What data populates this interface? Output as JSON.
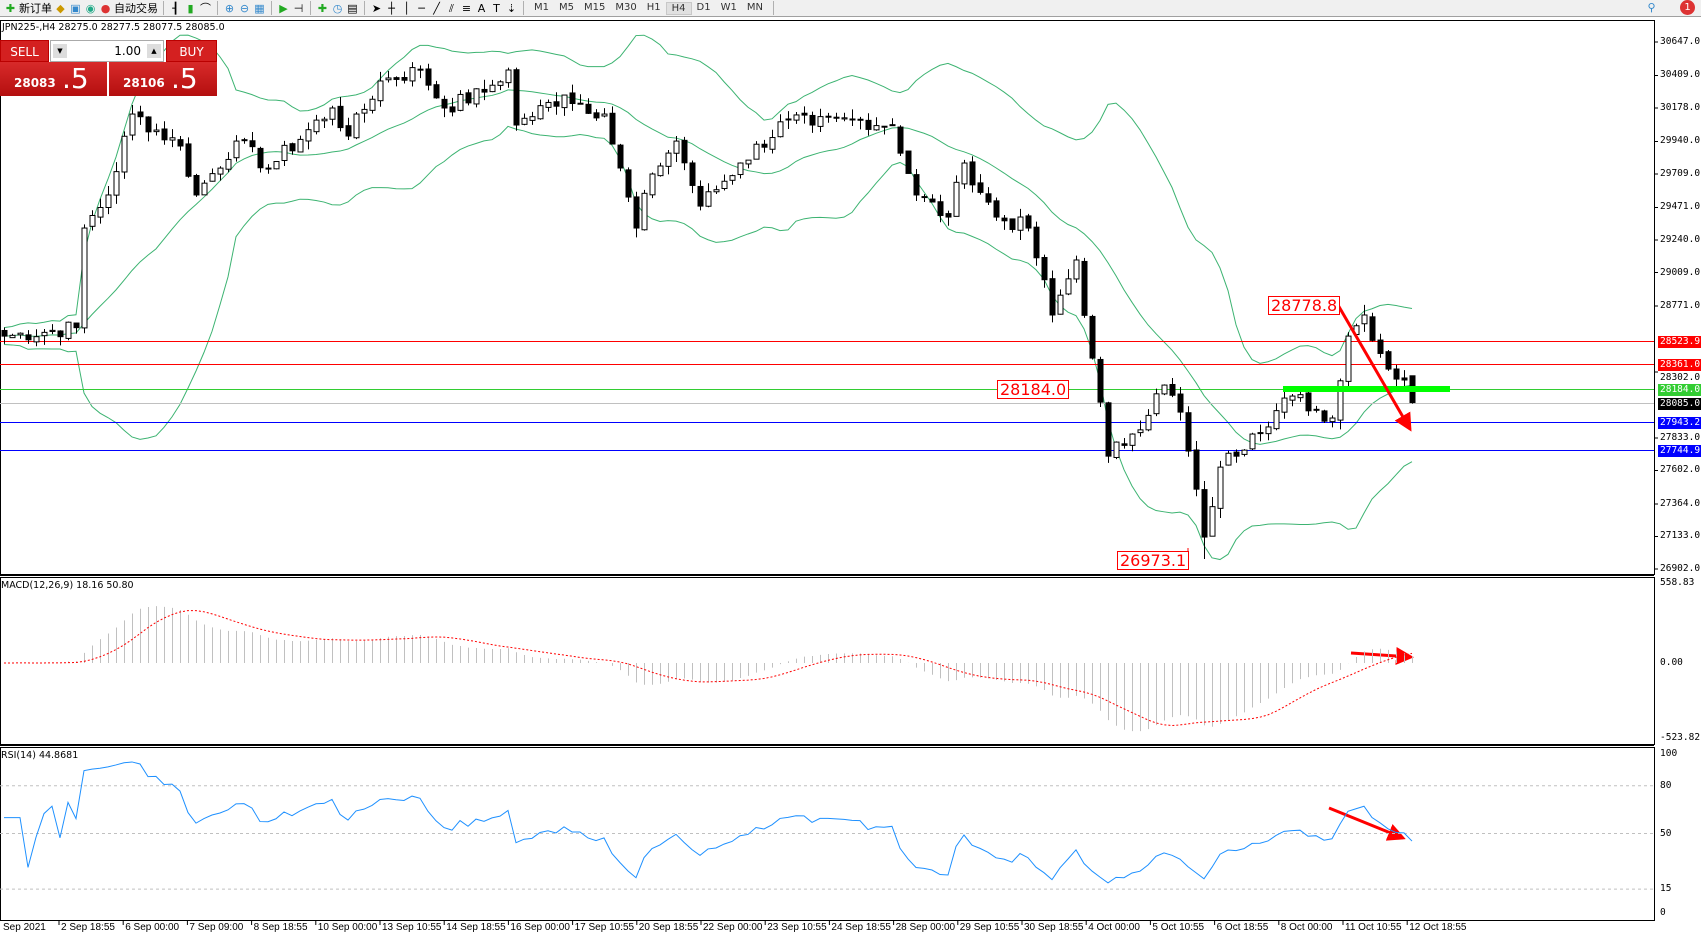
{
  "toolbar": {
    "new_order": "新订单",
    "auto_trading": "自动交易",
    "timeframes": [
      "M1",
      "M5",
      "M15",
      "M30",
      "H1",
      "H4",
      "D1",
      "W1",
      "MN"
    ],
    "active_timeframe": "H4",
    "notification_count": "1"
  },
  "symbol_header": "JPN225-,H4  28275.0 28277.5 28077.5 28085.0",
  "trade_panel": {
    "sell_label": "SELL",
    "buy_label": "BUY",
    "lot": "1.00",
    "sell_price_main": "28083",
    "sell_price_frac": ".5",
    "buy_price_main": "28106",
    "buy_price_frac": ".5"
  },
  "price_axis": [
    "30647.0",
    "30409.0",
    "30178.0",
    "29940.0",
    "29709.0",
    "29471.0",
    "29240.0",
    "29009.0",
    "28771.0",
    "28302.0",
    "27833.0",
    "27602.0",
    "27364.0",
    "27133.0",
    "26902.0"
  ],
  "levels": [
    {
      "label": "28523.9",
      "price": 28523.9,
      "color": "#ff0000"
    },
    {
      "label": "28361.0",
      "price": 28361.0,
      "color": "#ff0000"
    },
    {
      "label": "28184.0",
      "price": 28184.0,
      "color": "#32cd32"
    },
    {
      "label": "28085.0",
      "price": 28085.0,
      "color": "#000000",
      "line": "#c0c0c0"
    },
    {
      "label": "27943.2",
      "price": 27943.2,
      "color": "#0000ff"
    },
    {
      "label": "27744.9",
      "price": 27744.9,
      "color": "#0000ff"
    }
  ],
  "annotations": {
    "high": "28778.8",
    "low": "26973.1",
    "support": "28184.0"
  },
  "macd": {
    "label": "MACD(12,26,9) 18.16 50.80",
    "axis": [
      "558.83",
      "0.00",
      "-523.82"
    ]
  },
  "rsi": {
    "label": "RSI(14) 44.8681",
    "axis": [
      "100",
      "80",
      "50",
      "15",
      "0"
    ],
    "levels": [
      80,
      50,
      15
    ]
  },
  "time_axis": [
    "Sep 2021",
    "2 Sep 18:55",
    "6 Sep 00:00",
    "7 Sep 09:00",
    "8 Sep 18:55",
    "10 Sep 00:00",
    "13 Sep 10:55",
    "14 Sep 18:55",
    "16 Sep 00:00",
    "17 Sep 10:55",
    "20 Sep 18:55",
    "22 Sep 00:00",
    "23 Sep 10:55",
    "24 Sep 18:55",
    "28 Sep 00:00",
    "29 Sep 10:55",
    "30 Sep 18:55",
    "4 Oct 00:00",
    "5 Oct 10:55",
    "6 Oct 18:55",
    "8 Oct 00:00",
    "11 Oct 10:55",
    "12 Oct 18:55"
  ],
  "chart_data": {
    "type": "candlestick",
    "symbol": "JPN225-",
    "timeframe": "H4",
    "ylim": [
      26902,
      30647
    ],
    "close_path": [
      [
        0,
        28557
      ],
      [
        9,
        28617
      ],
      [
        10,
        29325
      ],
      [
        13,
        29560
      ],
      [
        16,
        30135
      ],
      [
        22,
        29908
      ],
      [
        24,
        29560
      ],
      [
        29,
        29943
      ],
      [
        33,
        29751
      ],
      [
        41,
        30178
      ],
      [
        43,
        29979
      ],
      [
        47,
        30370
      ],
      [
        52,
        30448
      ],
      [
        55,
        30178
      ],
      [
        60,
        30291
      ],
      [
        63,
        30448
      ],
      [
        64,
        30057
      ],
      [
        70,
        30270
      ],
      [
        75,
        30135
      ],
      [
        79,
        29325
      ],
      [
        81,
        29709
      ],
      [
        84,
        29943
      ],
      [
        87,
        29481
      ],
      [
        92,
        29787
      ],
      [
        98,
        30100
      ],
      [
        101,
        30057
      ],
      [
        106,
        30100
      ],
      [
        111,
        30057
      ],
      [
        114,
        29560
      ],
      [
        118,
        29403
      ],
      [
        120,
        29787
      ],
      [
        124,
        29403
      ],
      [
        128,
        29325
      ],
      [
        131,
        28707
      ],
      [
        134,
        29098
      ],
      [
        136,
        28401
      ],
      [
        138,
        27704
      ],
      [
        141,
        27861
      ],
      [
        145,
        28209
      ],
      [
        147,
        28017
      ],
      [
        150,
        27129
      ],
      [
        152,
        27626
      ],
      [
        156,
        27861
      ],
      [
        161,
        28131
      ],
      [
        166,
        27975
      ],
      [
        168,
        28557
      ],
      [
        170,
        28707
      ],
      [
        173,
        28323
      ],
      [
        175,
        28245
      ],
      [
        176,
        28085
      ]
    ],
    "last": {
      "open": 28275.0,
      "high": 28277.5,
      "low": 28077.5,
      "close": 28085.0
    },
    "indicators": [
      "Bollinger Bands",
      "MACD(12,26,9)",
      "RSI(14)"
    ],
    "colors": {
      "bands": "#3cb371",
      "macd_signal": "#ff0000",
      "macd_hist": "#c0c0c0",
      "rsi": "#1e90ff",
      "arrow": "#ff0000",
      "support_zone": "#00ff00"
    }
  }
}
